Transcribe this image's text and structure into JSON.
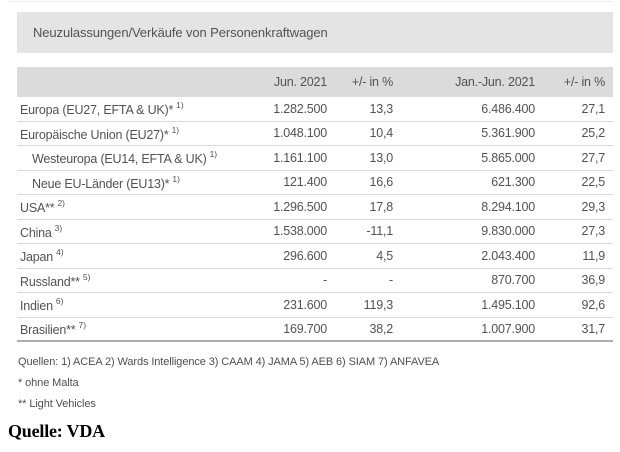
{
  "title": "Neuzulassungen/Verkäufe von Personenkraftwagen",
  "table": {
    "columns": [
      "Jun. 2021",
      "+/- in %",
      "Jan.-Jun. 2021",
      "+/- in %"
    ],
    "rows": [
      {
        "label": "Europa (EU27, EFTA & UK)*",
        "footnote": "1)",
        "indent": false,
        "values": [
          "1.282.500",
          "13,3",
          "6.486.400",
          "27,1"
        ]
      },
      {
        "label": "Europäische Union (EU27)*",
        "footnote": "1)",
        "indent": false,
        "values": [
          "1.048.100",
          "10,4",
          "5.361.900",
          "25,2"
        ]
      },
      {
        "label": "Westeuropa (EU14, EFTA & UK)",
        "footnote": "1)",
        "indent": true,
        "values": [
          "1.161.100",
          "13,0",
          "5.865.000",
          "27,7"
        ]
      },
      {
        "label": "Neue EU-Länder (EU13)*",
        "footnote": "1)",
        "indent": true,
        "values": [
          "121.400",
          "16,6",
          "621.300",
          "22,5"
        ]
      },
      {
        "label": "USA**",
        "footnote": "2)",
        "indent": false,
        "values": [
          "1.296.500",
          "17,8",
          "8.294.100",
          "29,3"
        ]
      },
      {
        "label": "China",
        "footnote": "3)",
        "indent": false,
        "values": [
          "1.538.000",
          "-11,1",
          "9.830.000",
          "27,3"
        ]
      },
      {
        "label": "Japan",
        "footnote": "4)",
        "indent": false,
        "values": [
          "296.600",
          "4,5",
          "2.043.400",
          "11,9"
        ]
      },
      {
        "label": "Russland**",
        "footnote": "5)",
        "indent": false,
        "values": [
          "-",
          "-",
          "870.700",
          "36,9"
        ]
      },
      {
        "label": "Indien",
        "footnote": "6)",
        "indent": false,
        "values": [
          "231.600",
          "119,3",
          "1.495.100",
          "92,6"
        ]
      },
      {
        "label": "Brasilien**",
        "footnote": "7)",
        "indent": false,
        "values": [
          "169.700",
          "38,2",
          "1.007.900",
          "31,7"
        ]
      }
    ]
  },
  "footnotes": {
    "sources": "Quellen: 1) ACEA  2) Wards Intelligence  3) CAAM  4) JAMA 5) AEB 6) SIAM  7) ANFAVEA",
    "note_asterisk": "* ohne Malta",
    "note_double_asterisk": "** Light Vehicles"
  },
  "caption": "Quelle: VDA",
  "colors": {
    "title_bar_background": "#e4e4e4",
    "header_row_background": "#dbdbdb",
    "text": "#525255",
    "row_separator": "#d9d9d9",
    "table_bottom_border": "#aeaeae",
    "caption_text": "#000000"
  }
}
